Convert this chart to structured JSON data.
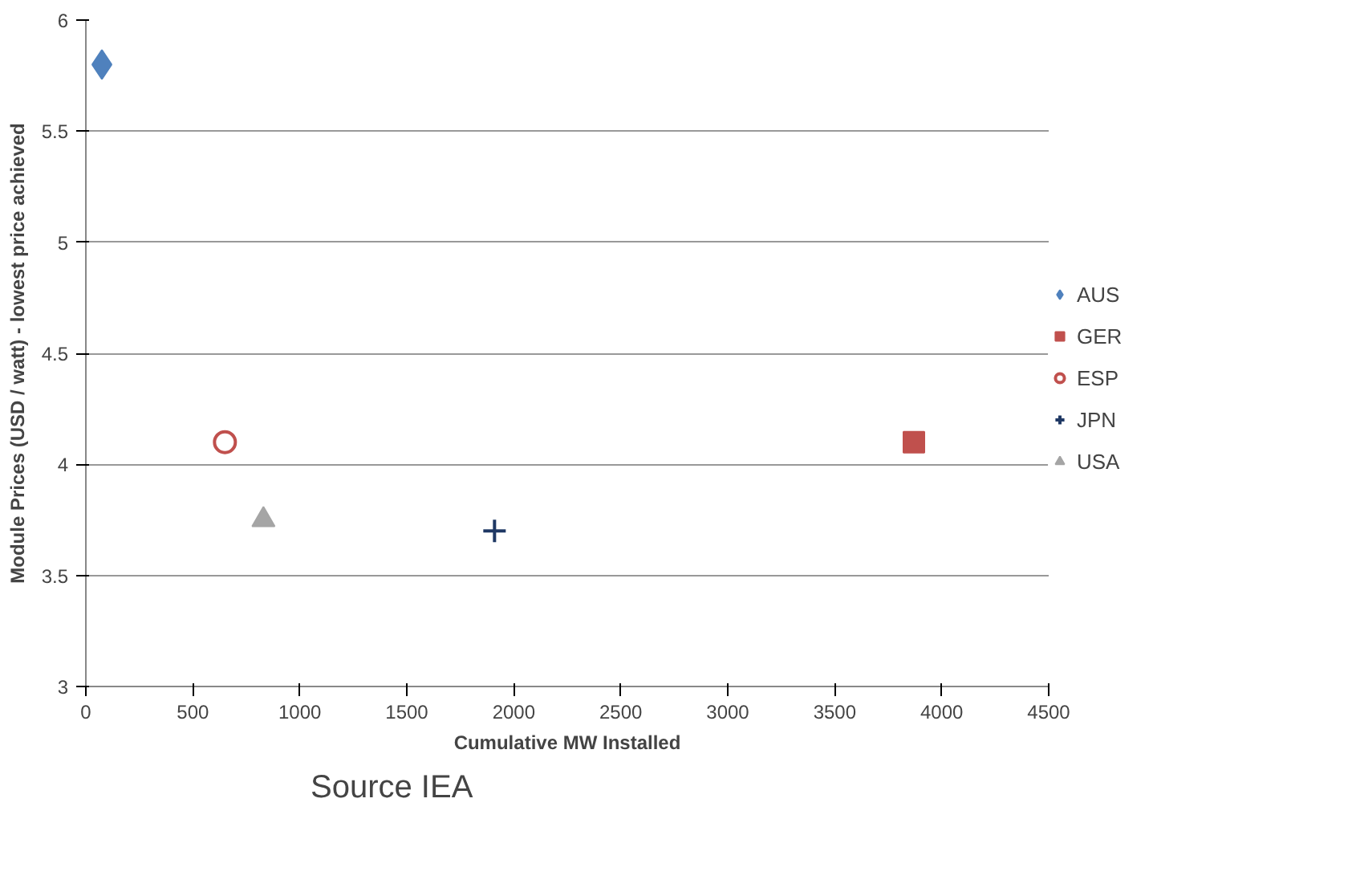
{
  "chart_data": {
    "type": "scatter",
    "xlabel": "Cumulative MW Installed",
    "ylabel": "Module Prices (USD / watt) - lowest price achieved",
    "xlim": [
      0,
      4500
    ],
    "xticks": [
      0,
      500,
      1000,
      1500,
      2000,
      2500,
      3000,
      3500,
      4000,
      4500
    ],
    "ylim": [
      3,
      6
    ],
    "yticks": [
      3,
      3.5,
      4,
      4.5,
      5,
      5.5,
      6
    ],
    "grid": "y",
    "legend": "right",
    "annotations": [
      "Source IEA"
    ],
    "series": [
      {
        "name": "AUS",
        "color": "#4f81bd",
        "marker": "diamond",
        "x": [
          75
        ],
        "values": [
          5.8
        ]
      },
      {
        "name": "GER",
        "color": "#c0504d",
        "marker": "square",
        "x": [
          3870
        ],
        "values": [
          4.1
        ]
      },
      {
        "name": "ESP",
        "color": "#c0504d",
        "marker": "circle",
        "x": [
          650
        ],
        "values": [
          4.1
        ]
      },
      {
        "name": "JPN",
        "color": "#1f3864",
        "marker": "cross",
        "x": [
          1910
        ],
        "values": [
          3.7
        ]
      },
      {
        "name": "USA",
        "color": "#a5a5a5",
        "marker": "triangle",
        "x": [
          830
        ],
        "values": [
          3.75
        ]
      }
    ]
  }
}
